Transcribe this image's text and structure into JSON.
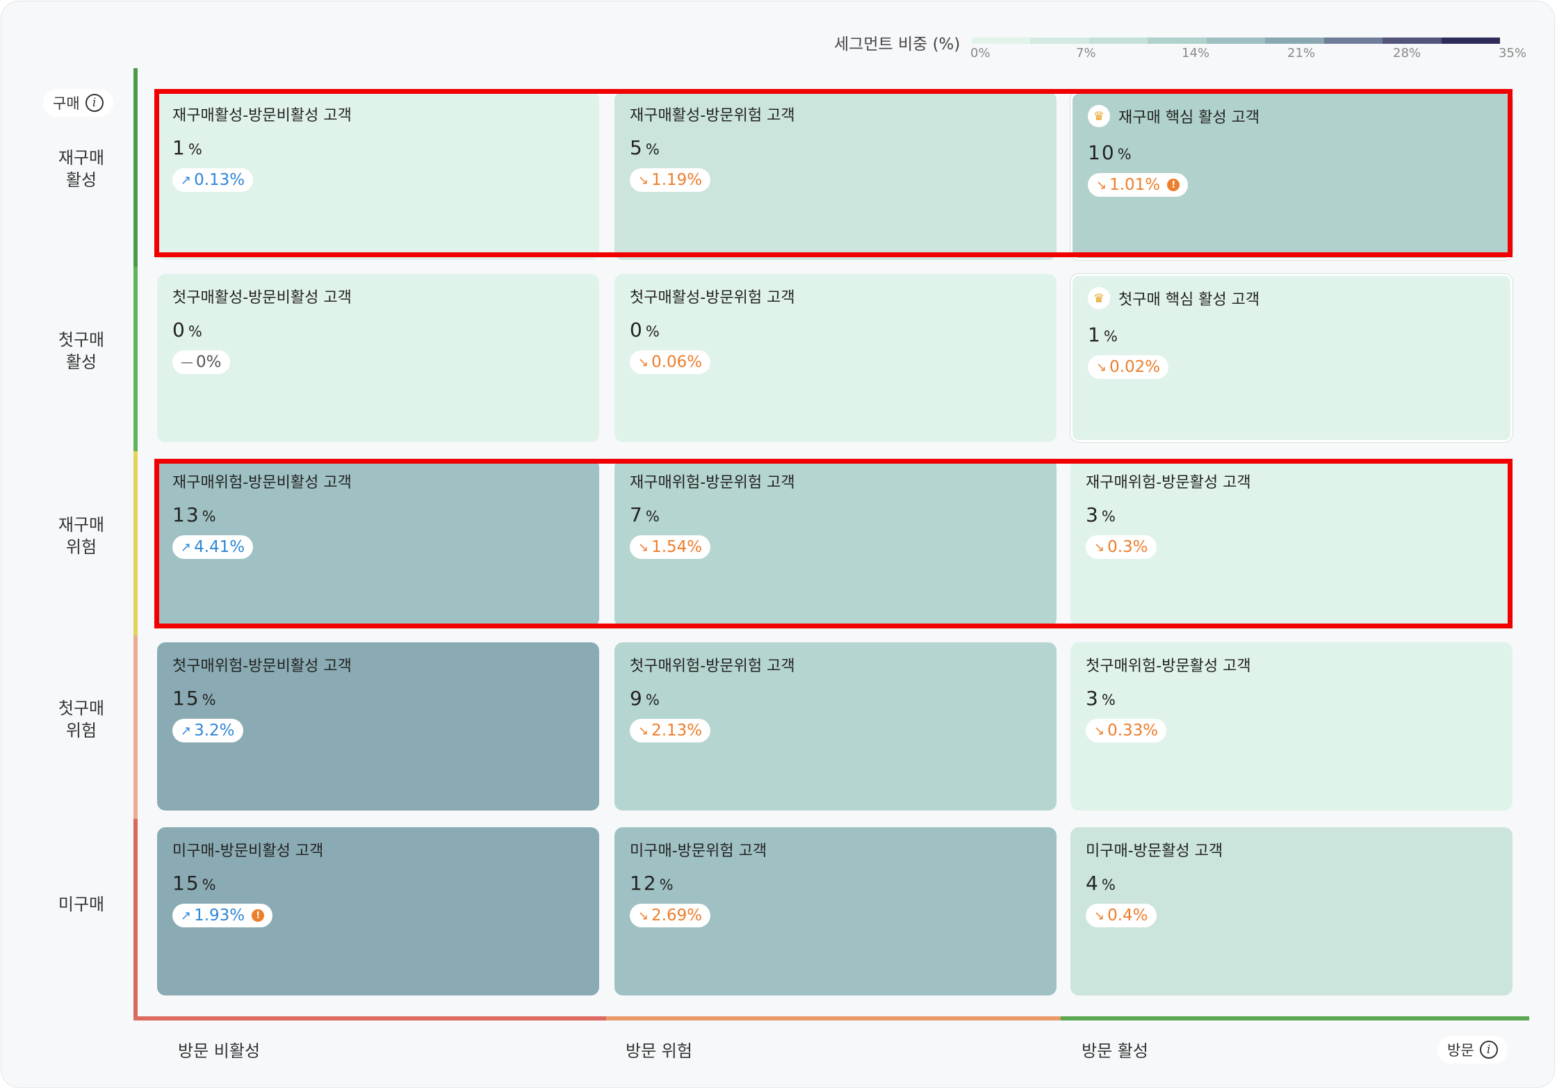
{
  "legend": {
    "title": "세그먼트 비중 (%)",
    "colors": [
      "#e2f4ea",
      "#d3eae2",
      "#c4e0da",
      "#b1d1cd",
      "#9fbfc2",
      "#8ba7b2",
      "#6f7d99",
      "#53557a",
      "#2e2d5a"
    ],
    "ticks": [
      "0%",
      "7%",
      "14%",
      "21%",
      "28%",
      "35%"
    ]
  },
  "y_axis": {
    "chip_label": "구매",
    "chip_icon": "info-icon",
    "colors": [
      "#4e9a4c",
      "#60b35a",
      "#e2d45a",
      "#e8ad8e",
      "#d9675f"
    ],
    "rows": [
      "재구매\n활성",
      "첫구매\n활성",
      "재구매\n위험",
      "첫구매\n위험",
      "미구매"
    ]
  },
  "x_axis": {
    "chip_label": "방문",
    "chip_icon": "info-icon",
    "colors": [
      "#dd6b62",
      "#e99a66",
      "#59a84f"
    ],
    "columns": [
      "방문 비활성",
      "방문 위험",
      "방문 활성"
    ]
  },
  "cells": [
    [
      {
        "title": "재구매활성-방문비활성 고객",
        "value": "1",
        "unit": "%",
        "change": "0.13%",
        "trend": "up",
        "warning": false,
        "core": false,
        "color": "#e0f3ea"
      },
      {
        "title": "재구매활성-방문위험 고객",
        "value": "5",
        "unit": "%",
        "change": "1.19%",
        "trend": "down",
        "warning": false,
        "core": false,
        "color": "#cbe4dc"
      },
      {
        "title": "재구매 핵심 활성 고객",
        "value": "10",
        "unit": "%",
        "change": "1.01%",
        "trend": "down",
        "warning": true,
        "core": true,
        "color": "#b1d2cc"
      }
    ],
    [
      {
        "title": "첫구매활성-방문비활성 고객",
        "value": "0",
        "unit": "%",
        "change": "0%",
        "trend": "flat",
        "warning": false,
        "core": false,
        "color": "#e0f3ea"
      },
      {
        "title": "첫구매활성-방문위험 고객",
        "value": "0",
        "unit": "%",
        "change": "0.06%",
        "trend": "down",
        "warning": false,
        "core": false,
        "color": "#e0f3ea"
      },
      {
        "title": "첫구매 핵심 활성 고객",
        "value": "1",
        "unit": "%",
        "change": "0.02%",
        "trend": "down",
        "warning": false,
        "core": true,
        "color": "#e0f3ea"
      }
    ],
    [
      {
        "title": "재구매위험-방문비활성 고객",
        "value": "13",
        "unit": "%",
        "change": "4.41%",
        "trend": "up",
        "warning": false,
        "core": false,
        "color": "#a0c1c3"
      },
      {
        "title": "재구매위험-방문위험 고객",
        "value": "7",
        "unit": "%",
        "change": "1.54%",
        "trend": "down",
        "warning": false,
        "core": false,
        "color": "#b5d5d0"
      },
      {
        "title": "재구매위험-방문활성 고객",
        "value": "3",
        "unit": "%",
        "change": "0.3%",
        "trend": "down",
        "warning": false,
        "core": false,
        "color": "#e0f3ea"
      }
    ],
    [
      {
        "title": "첫구매위험-방문비활성 고객",
        "value": "15",
        "unit": "%",
        "change": "3.2%",
        "trend": "up",
        "warning": false,
        "core": false,
        "color": "#8aabb3"
      },
      {
        "title": "첫구매위험-방문위험 고객",
        "value": "9",
        "unit": "%",
        "change": "2.13%",
        "trend": "down",
        "warning": false,
        "core": false,
        "color": "#b5d5d0"
      },
      {
        "title": "첫구매위험-방문활성 고객",
        "value": "3",
        "unit": "%",
        "change": "0.33%",
        "trend": "down",
        "warning": false,
        "core": false,
        "color": "#e0f3ea"
      }
    ],
    [
      {
        "title": "미구매-방문비활성 고객",
        "value": "15",
        "unit": "%",
        "change": "1.93%",
        "trend": "up",
        "warning": true,
        "core": false,
        "color": "#8aabb3"
      },
      {
        "title": "미구매-방문위험 고객",
        "value": "12",
        "unit": "%",
        "change": "2.69%",
        "trend": "down",
        "warning": false,
        "core": false,
        "color": "#a0c1c3"
      },
      {
        "title": "미구매-방문활성 고객",
        "value": "4",
        "unit": "%",
        "change": "0.4%",
        "trend": "down",
        "warning": false,
        "core": false,
        "color": "#cbe4dc"
      }
    ]
  ]
}
